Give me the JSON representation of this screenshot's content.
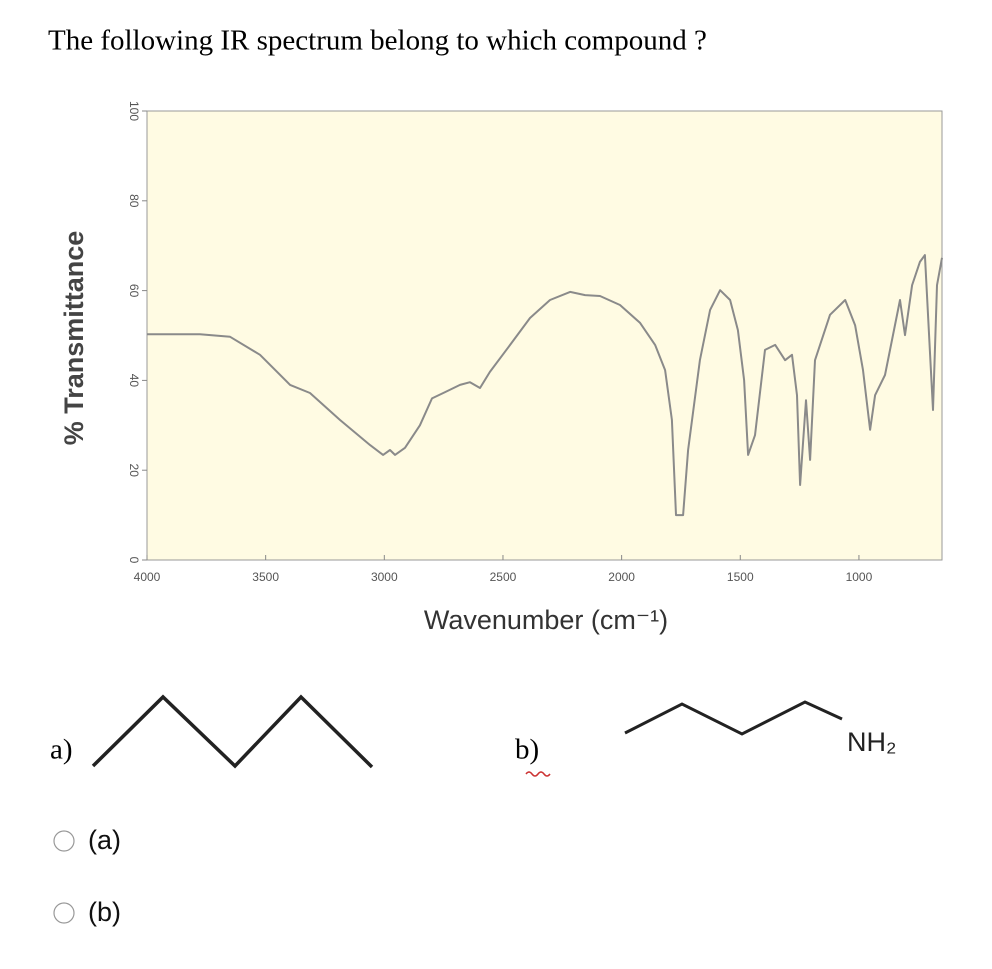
{
  "question": "The following IR spectrum belong to which compound ?",
  "chart_data": {
    "type": "line",
    "xlabel": "Wavenumber (cm⁻¹)",
    "ylabel": "% Transmittance",
    "xlim": [
      4000,
      650
    ],
    "ylim": [
      0,
      100
    ],
    "xticks": [
      4000,
      3500,
      3000,
      2500,
      2000,
      1500,
      1000
    ],
    "yticks": [
      0,
      20,
      40,
      60,
      80,
      100
    ],
    "background": "#fffbe3",
    "series": [
      {
        "color": "#8a8a8a",
        "x": [
          4000,
          3777,
          3650,
          3524,
          3397,
          3313,
          3187,
          3060,
          3005,
          2976,
          2955,
          2913,
          2850,
          2799,
          2744,
          2681,
          2639,
          2597,
          2555,
          2470,
          2386,
          2302,
          2217,
          2154,
          2091,
          2007,
          1922,
          1859,
          1817,
          1788,
          1771,
          1741,
          1720,
          1670,
          1627,
          1585,
          1543,
          1510,
          1484,
          1467,
          1438,
          1396,
          1353,
          1311,
          1282,
          1261,
          1248,
          1223,
          1206,
          1185,
          1122,
          1058,
          1016,
          983,
          953,
          932,
          890,
          827,
          806,
          776,
          743,
          722,
          700,
          688,
          671,
          650
        ],
        "values": [
          50.3,
          50.3,
          49.7,
          45.7,
          39,
          37.2,
          31.2,
          25.6,
          23.4,
          24.5,
          23.4,
          25,
          30,
          36,
          37.4,
          39,
          39.6,
          38.3,
          41.9,
          47.9,
          53.9,
          57.9,
          59.7,
          59,
          58.8,
          56.8,
          52.8,
          47.9,
          42.3,
          31.2,
          10,
          10,
          24.5,
          44.5,
          55.7,
          60.1,
          57.9,
          51.2,
          40.1,
          23.4,
          27.8,
          46.8,
          47.9,
          44.5,
          45.7,
          36.7,
          16.7,
          35.6,
          22.3,
          44.5,
          54.6,
          57.9,
          52.3,
          42.3,
          29,
          36.7,
          41.2,
          57.9,
          50.1,
          61.2,
          66.4,
          67.9,
          45.7,
          33.4,
          61.2,
          67.3
        ]
      }
    ]
  },
  "structures": {
    "a": {
      "label": "a)"
    },
    "b": {
      "label": "b)",
      "group": "NH₂"
    }
  },
  "options": [
    "(a)",
    "(b)"
  ]
}
